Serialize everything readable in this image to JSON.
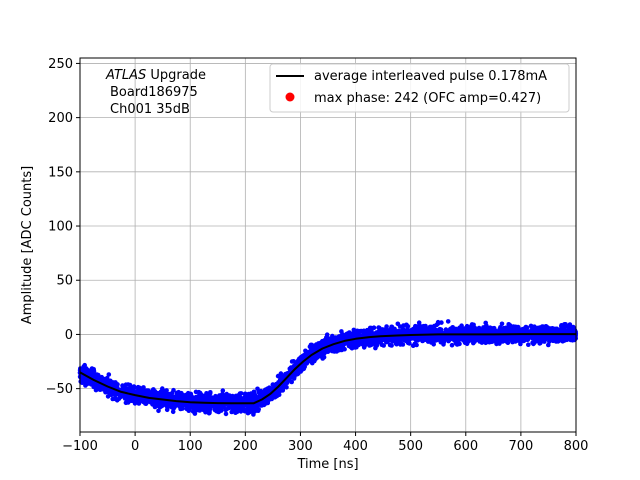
{
  "chart_data": {
    "type": "scatter",
    "xlabel": "Time [ns]",
    "ylabel": "Amplitude [ADC Counts]",
    "xlim": [
      -100,
      800
    ],
    "ylim": [
      -90,
      255
    ],
    "xticks": [
      -100,
      0,
      100,
      200,
      300,
      400,
      500,
      600,
      700,
      800
    ],
    "yticks": [
      -50,
      0,
      50,
      100,
      150,
      200,
      250
    ],
    "grid": true,
    "legend_position": "top-right",
    "annotation": {
      "italic": "ATLAS",
      "rest": " Upgrade",
      "line2": "Board186975",
      "line3": "Ch001 35dB"
    },
    "series": [
      {
        "name": "average interleaved pulse 0.178mA",
        "kind": "line",
        "color": "#000000",
        "x": [
          -100,
          -75,
          -50,
          -25,
          0,
          25,
          50,
          75,
          100,
          125,
          150,
          175,
          200,
          215,
          230,
          245,
          260,
          275,
          290,
          305,
          320,
          340,
          360,
          380,
          400,
          425,
          450,
          475,
          500,
          550,
          600,
          650,
          700,
          750,
          800
        ],
        "y": [
          -35,
          -42,
          -48,
          -53,
          -56,
          -58.5,
          -60,
          -61.5,
          -62.5,
          -63,
          -63.3,
          -63.5,
          -63.5,
          -63.5,
          -60,
          -55,
          -48,
          -40,
          -32,
          -25,
          -19,
          -13,
          -9,
          -6,
          -4,
          -2.5,
          -1.5,
          -1,
          -0.5,
          0,
          0,
          0,
          0.3,
          0.3,
          0.3
        ]
      },
      {
        "name": "max phase: 242 (OFC amp=0.427)",
        "kind": "scatter",
        "color": "#0000ff",
        "legend_color": "#ff0000",
        "note": "samples scattered around the average pulse",
        "spread": 4
      }
    ]
  }
}
